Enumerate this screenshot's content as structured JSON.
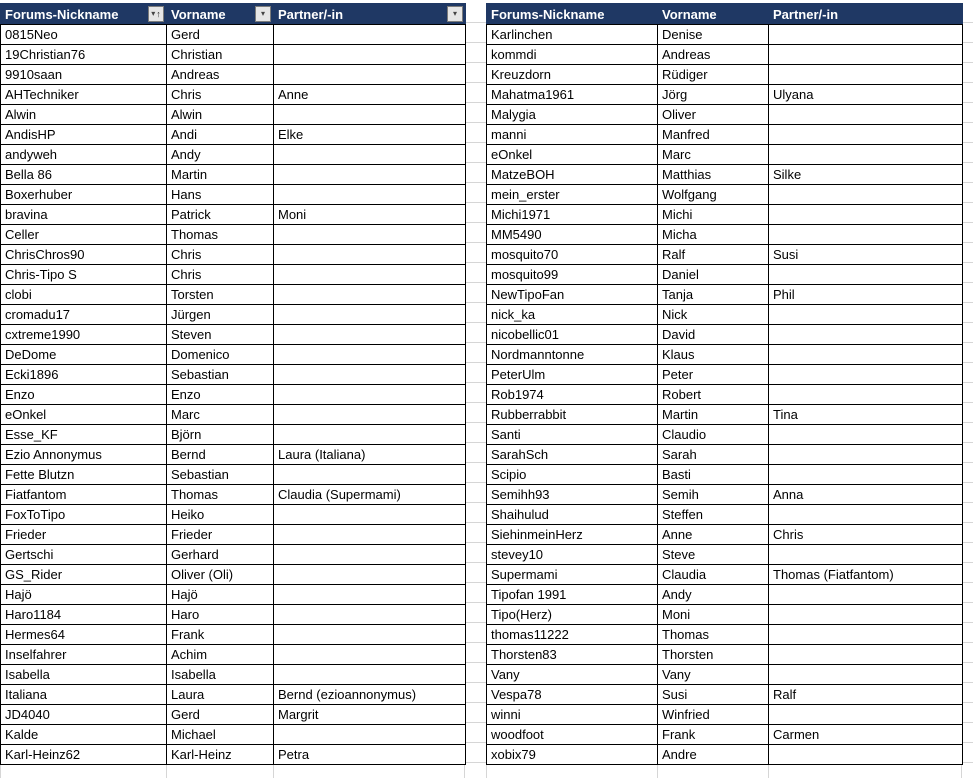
{
  "sheet": {
    "description_visible_ui": "Two side-by-side spreadsheet tables of forum members",
    "colors": {
      "header_bg": "#1f3864",
      "header_text": "#ffffff",
      "cell_border": "#000000",
      "gridline": "#d6d6d6",
      "filter_button_bg": "#e6e6e6"
    }
  },
  "left_table": {
    "headers": [
      "Forums-Nickname",
      "Vorname",
      "Partner/-in"
    ],
    "filter_icons": {
      "nickname": "sort-ascending-filter-icon",
      "vorname": "dropdown-arrow-icon",
      "partner": "dropdown-arrow-icon"
    },
    "icon_glyphs": {
      "dropdown": "▾",
      "sort_up": "↑"
    },
    "rows": [
      [
        "0815Neo",
        "Gerd",
        ""
      ],
      [
        "19Christian76",
        "Christian",
        ""
      ],
      [
        "9910saan",
        "Andreas",
        ""
      ],
      [
        "AHTechniker",
        "Chris",
        "Anne"
      ],
      [
        "Alwin",
        "Alwin",
        ""
      ],
      [
        "AndisHP",
        "Andi",
        "Elke"
      ],
      [
        "andyweh",
        "Andy",
        ""
      ],
      [
        "Bella 86",
        "Martin",
        ""
      ],
      [
        "Boxerhuber",
        "Hans",
        ""
      ],
      [
        "bravina",
        "Patrick",
        "Moni"
      ],
      [
        "Celler",
        "Thomas",
        ""
      ],
      [
        "ChrisChros90",
        "Chris",
        ""
      ],
      [
        "Chris-Tipo S",
        "Chris",
        ""
      ],
      [
        "clobi",
        "Torsten",
        ""
      ],
      [
        "cromadu17",
        "Jürgen",
        ""
      ],
      [
        "cxtreme1990",
        "Steven",
        ""
      ],
      [
        "DeDome",
        "Domenico",
        ""
      ],
      [
        "Ecki1896",
        "Sebastian",
        ""
      ],
      [
        "Enzo",
        "Enzo",
        ""
      ],
      [
        "eOnkel",
        "Marc",
        ""
      ],
      [
        "Esse_KF",
        "Björn",
        ""
      ],
      [
        "Ezio Annonymus",
        "Bernd",
        "Laura (Italiana)"
      ],
      [
        "Fette Blutzn",
        "Sebastian",
        ""
      ],
      [
        "Fiatfantom",
        "Thomas",
        "Claudia (Supermami)"
      ],
      [
        "FoxToTipo",
        "Heiko",
        ""
      ],
      [
        "Frieder",
        "Frieder",
        ""
      ],
      [
        "Gertschi",
        "Gerhard",
        ""
      ],
      [
        "GS_Rider",
        "Oliver (Oli)",
        ""
      ],
      [
        "Hajö",
        "Hajö",
        ""
      ],
      [
        "Haro1184",
        "Haro",
        ""
      ],
      [
        "Hermes64",
        "Frank",
        ""
      ],
      [
        "Inselfahrer",
        "Achim",
        ""
      ],
      [
        "Isabella",
        "Isabella",
        ""
      ],
      [
        "Italiana",
        "Laura",
        "Bernd (ezioannonymus)"
      ],
      [
        "JD4040",
        "Gerd",
        "Margrit"
      ],
      [
        "Kalde",
        "Michael",
        ""
      ],
      [
        "Karl-Heinz62",
        "Karl-Heinz",
        "Petra"
      ]
    ]
  },
  "right_table": {
    "headers": [
      "Forums-Nickname",
      "Vorname",
      "Partner/-in"
    ],
    "rows": [
      [
        "Karlinchen",
        "Denise",
        ""
      ],
      [
        "kommdi",
        "Andreas",
        ""
      ],
      [
        "Kreuzdorn",
        "Rüdiger",
        ""
      ],
      [
        "Mahatma1961",
        "Jörg",
        "Ulyana"
      ],
      [
        "Malygia",
        "Oliver",
        ""
      ],
      [
        "manni",
        "Manfred",
        ""
      ],
      [
        "eOnkel",
        "Marc",
        ""
      ],
      [
        "MatzeBOH",
        "Matthias",
        "Silke"
      ],
      [
        "mein_erster",
        "Wolfgang",
        ""
      ],
      [
        "Michi1971",
        "Michi",
        ""
      ],
      [
        "MM5490",
        "Micha",
        ""
      ],
      [
        "mosquito70",
        "Ralf",
        "Susi"
      ],
      [
        "mosquito99",
        "Daniel",
        ""
      ],
      [
        "NewTipoFan",
        "Tanja",
        "Phil"
      ],
      [
        "nick_ka",
        "Nick",
        ""
      ],
      [
        "nicobellic01",
        "David",
        ""
      ],
      [
        "Nordmanntonne",
        "Klaus",
        ""
      ],
      [
        "PeterUlm",
        "Peter",
        ""
      ],
      [
        "Rob1974",
        "Robert",
        ""
      ],
      [
        "Rubberrabbit",
        "Martin",
        "Tina"
      ],
      [
        "Santi",
        "Claudio",
        ""
      ],
      [
        "SarahSch",
        "Sarah",
        ""
      ],
      [
        "Scipio",
        "Basti",
        ""
      ],
      [
        "Semihh93",
        "Semih",
        "Anna"
      ],
      [
        "Shaihulud",
        "Steffen",
        ""
      ],
      [
        "SiehinmeinHerz",
        "Anne",
        "Chris"
      ],
      [
        "stevey10",
        "Steve",
        ""
      ],
      [
        "Supermami",
        "Claudia",
        "Thomas (Fiatfantom)"
      ],
      [
        "Tipofan 1991",
        "Andy",
        ""
      ],
      [
        "Tipo(Herz)",
        "Moni",
        ""
      ],
      [
        "thomas11222",
        "Thomas",
        ""
      ],
      [
        "Thorsten83",
        "Thorsten",
        ""
      ],
      [
        "Vany",
        "Vany",
        ""
      ],
      [
        "Vespa78",
        "Susi",
        "Ralf"
      ],
      [
        "winni",
        "Winfried",
        ""
      ],
      [
        "woodfoot",
        "Frank",
        "Carmen"
      ],
      [
        "xobix79",
        "Andre",
        ""
      ]
    ]
  }
}
